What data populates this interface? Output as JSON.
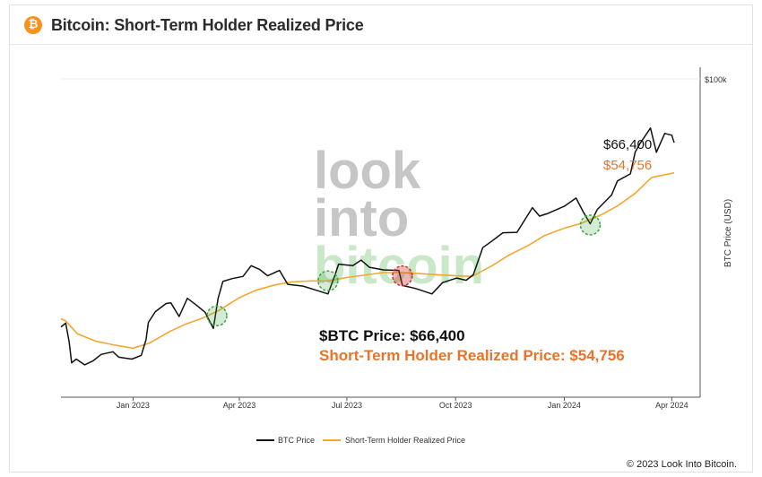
{
  "header": {
    "title": "Bitcoin: Short-Term Holder Realized Price",
    "logo_glyph": "₿"
  },
  "watermark": {
    "line1": "look",
    "line2": "into",
    "line3": "bitcoin"
  },
  "annotations": {
    "price_label": "$66,400",
    "sth_label": "$54,756",
    "summary_btc": "$BTC Price: $66,400",
    "summary_sth": "Short-Term Holder Realized Price: $54,756"
  },
  "legend": {
    "btc": "BTC Price",
    "sth": "Short-Term Holder Realized Price"
  },
  "footer": {
    "copyright": "© 2023 Look Into Bitcoin."
  },
  "colors": {
    "btc": "#111111",
    "sth": "#f2a82e",
    "sth_text": "#e8742a",
    "circle_green": "#3aa640",
    "circle_red": "#c9302c"
  },
  "chart_data": {
    "type": "line",
    "title": "Bitcoin: Short-Term Holder Realized Price",
    "xlabel": "",
    "ylabel": "BTC Price (USD)",
    "y_scale": "log",
    "ylim": [
      13000,
      100000
    ],
    "xlim": [
      "2022-11-01",
      "2024-04-25"
    ],
    "x_ticks": [
      {
        "date": "2023-01-01",
        "label": "Jan 2023"
      },
      {
        "date": "2023-04-01",
        "label": "Apr 2023"
      },
      {
        "date": "2023-07-01",
        "label": "Jul 2023"
      },
      {
        "date": "2023-10-01",
        "label": "Oct 2023"
      },
      {
        "date": "2024-01-01",
        "label": "Jan 2024"
      },
      {
        "date": "2024-04-01",
        "label": "Apr 2024"
      }
    ],
    "y_ticks": [
      {
        "value": 100000,
        "label": "$100k"
      }
    ],
    "grid": false,
    "legend_position": "bottom",
    "series": [
      {
        "name": "BTC Price",
        "points": [
          [
            "2022-11-01",
            20400
          ],
          [
            "2022-11-05",
            20900
          ],
          [
            "2022-11-08",
            18500
          ],
          [
            "2022-11-10",
            16200
          ],
          [
            "2022-11-14",
            16600
          ],
          [
            "2022-11-21",
            16000
          ],
          [
            "2022-11-28",
            16400
          ],
          [
            "2022-12-05",
            17100
          ],
          [
            "2022-12-15",
            17400
          ],
          [
            "2022-12-20",
            16800
          ],
          [
            "2022-12-31",
            16600
          ],
          [
            "2023-01-08",
            17000
          ],
          [
            "2023-01-12",
            18800
          ],
          [
            "2023-01-14",
            21000
          ],
          [
            "2023-01-20",
            22500
          ],
          [
            "2023-01-29",
            23700
          ],
          [
            "2023-02-02",
            23800
          ],
          [
            "2023-02-09",
            21800
          ],
          [
            "2023-02-16",
            24500
          ],
          [
            "2023-02-24",
            23400
          ],
          [
            "2023-03-03",
            22400
          ],
          [
            "2023-03-10",
            20200
          ],
          [
            "2023-03-14",
            24500
          ],
          [
            "2023-03-18",
            27300
          ],
          [
            "2023-03-26",
            27800
          ],
          [
            "2023-04-04",
            28200
          ],
          [
            "2023-04-11",
            30200
          ],
          [
            "2023-04-18",
            29500
          ],
          [
            "2023-04-25",
            28300
          ],
          [
            "2023-05-05",
            29300
          ],
          [
            "2023-05-12",
            26800
          ],
          [
            "2023-05-25",
            26500
          ],
          [
            "2023-06-05",
            25800
          ],
          [
            "2023-06-15",
            25200
          ],
          [
            "2023-06-21",
            28500
          ],
          [
            "2023-06-24",
            30500
          ],
          [
            "2023-07-06",
            30200
          ],
          [
            "2023-07-13",
            31300
          ],
          [
            "2023-07-20",
            29900
          ],
          [
            "2023-08-01",
            29400
          ],
          [
            "2023-08-14",
            29300
          ],
          [
            "2023-08-17",
            26600
          ],
          [
            "2023-08-28",
            26100
          ],
          [
            "2023-09-11",
            25200
          ],
          [
            "2023-09-20",
            27100
          ],
          [
            "2023-10-02",
            27900
          ],
          [
            "2023-10-10",
            27500
          ],
          [
            "2023-10-16",
            28500
          ],
          [
            "2023-10-24",
            33900
          ],
          [
            "2023-11-01",
            35400
          ],
          [
            "2023-11-10",
            37300
          ],
          [
            "2023-11-22",
            37400
          ],
          [
            "2023-12-05",
            43800
          ],
          [
            "2023-12-11",
            41500
          ],
          [
            "2023-12-18",
            42200
          ],
          [
            "2024-01-01",
            44200
          ],
          [
            "2024-01-11",
            46600
          ],
          [
            "2024-01-17",
            42700
          ],
          [
            "2024-01-23",
            39500
          ],
          [
            "2024-01-29",
            43300
          ],
          [
            "2024-02-10",
            47500
          ],
          [
            "2024-02-15",
            52000
          ],
          [
            "2024-02-26",
            54400
          ],
          [
            "2024-03-01",
            62500
          ],
          [
            "2024-03-05",
            66000
          ],
          [
            "2024-03-14",
            73000
          ],
          [
            "2024-03-19",
            62500
          ],
          [
            "2024-03-26",
            70500
          ],
          [
            "2024-04-01",
            69700
          ],
          [
            "2024-04-03",
            66400
          ]
        ]
      },
      {
        "name": "Short-Term Holder Realized Price",
        "points": [
          [
            "2022-11-01",
            21500
          ],
          [
            "2022-11-05",
            21200
          ],
          [
            "2022-11-15",
            19500
          ],
          [
            "2022-12-01",
            18600
          ],
          [
            "2022-12-15",
            18200
          ],
          [
            "2023-01-01",
            17800
          ],
          [
            "2023-01-15",
            18400
          ],
          [
            "2023-02-01",
            19800
          ],
          [
            "2023-02-15",
            20800
          ],
          [
            "2023-03-01",
            21600
          ],
          [
            "2023-03-15",
            22700
          ],
          [
            "2023-04-01",
            24600
          ],
          [
            "2023-04-15",
            25800
          ],
          [
            "2023-05-01",
            26700
          ],
          [
            "2023-05-15",
            27200
          ],
          [
            "2023-06-01",
            27400
          ],
          [
            "2023-06-15",
            27400
          ],
          [
            "2023-07-01",
            28000
          ],
          [
            "2023-07-15",
            28400
          ],
          [
            "2023-08-01",
            28900
          ],
          [
            "2023-08-15",
            28900
          ],
          [
            "2023-09-01",
            28700
          ],
          [
            "2023-09-15",
            28500
          ],
          [
            "2023-10-01",
            28300
          ],
          [
            "2023-10-15",
            28200
          ],
          [
            "2023-11-01",
            30200
          ],
          [
            "2023-11-15",
            32300
          ],
          [
            "2023-12-01",
            34300
          ],
          [
            "2023-12-15",
            36600
          ],
          [
            "2024-01-01",
            38400
          ],
          [
            "2024-01-15",
            39600
          ],
          [
            "2024-02-01",
            41800
          ],
          [
            "2024-02-15",
            44300
          ],
          [
            "2024-03-01",
            48000
          ],
          [
            "2024-03-15",
            53200
          ],
          [
            "2024-04-03",
            54756
          ]
        ]
      }
    ],
    "highlights": [
      {
        "date": "2023-03-13",
        "value": 21900,
        "color": "green"
      },
      {
        "date": "2023-06-15",
        "value": 27400,
        "color": "green"
      },
      {
        "date": "2023-08-17",
        "value": 28300,
        "color": "red"
      },
      {
        "date": "2024-01-23",
        "value": 39200,
        "color": "green"
      }
    ]
  }
}
